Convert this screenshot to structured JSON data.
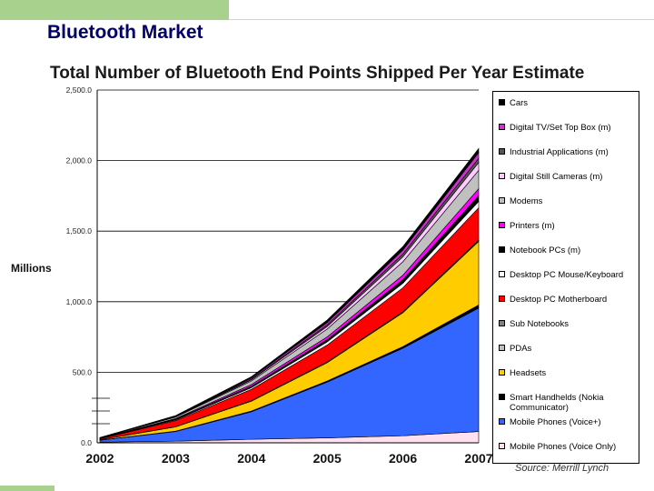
{
  "slide": {
    "title": "Bluetooth Market",
    "unit_label": "Millions",
    "source": "Source: Merrill Lynch"
  },
  "chart_data": {
    "type": "area",
    "stacked": true,
    "title": "Total Number of Bluetooth End Points Shipped Per Year Estimate",
    "ylabel": "Millions",
    "xlabel": "",
    "x": [
      "2002",
      "2003",
      "2004",
      "2005",
      "2006",
      "2007"
    ],
    "ylim": [
      0,
      2500
    ],
    "yticks": [
      "0.0",
      "500.0",
      "1,000.0",
      "1,500.0",
      "2,000.0",
      "2,500.0"
    ],
    "legend_position": "right",
    "series": [
      {
        "name": "Mobile Phones (Voice Only)",
        "color": "#ffe0f0",
        "values": [
          5,
          12,
          25,
          35,
          50,
          80
        ]
      },
      {
        "name": "Mobile Phones (Voice+)",
        "color": "#3366ff",
        "values": [
          13,
          68,
          195,
          395,
          620,
          875
        ]
      },
      {
        "name": "Smart Handhelds (Nokia Communicator)",
        "color": "#000000",
        "values": [
          0.5,
          3,
          5,
          8,
          12,
          22
        ]
      },
      {
        "name": "Headsets",
        "color": "#ffcc00",
        "values": [
          3,
          30,
          70,
          130,
          240,
          450
        ]
      },
      {
        "name": "PDAs",
        "color": "#c0c0c0",
        "values": [
          0.5,
          1,
          2,
          3,
          4,
          5
        ]
      },
      {
        "name": "Sub Notebooks",
        "color": "#808080",
        "values": [
          0.5,
          1,
          2,
          2,
          3,
          4
        ]
      },
      {
        "name": "Desktop PC Motherboard",
        "color": "#ff0000",
        "values": [
          6,
          42,
          80,
          120,
          170,
          230
        ]
      },
      {
        "name": "Desktop PC Mouse/Keyboard",
        "color": "#ffffff",
        "values": [
          2,
          5,
          12,
          22,
          32,
          45
        ]
      },
      {
        "name": "Notebook PCs (m)",
        "color": "#000000",
        "values": [
          1,
          5,
          10,
          16,
          25,
          40
        ]
      },
      {
        "name": "Printers (m)",
        "color": "#ff00ff",
        "values": [
          1,
          5,
          12,
          20,
          32,
          50
        ]
      },
      {
        "name": "Modems",
        "color": "#c0c0c0",
        "values": [
          2,
          10,
          25,
          55,
          95,
          130
        ]
      },
      {
        "name": "Digital Still Cameras (m)",
        "color": "#ffccff",
        "values": [
          1,
          3,
          8,
          18,
          35,
          55
        ]
      },
      {
        "name": "Industrial Applications (m)",
        "color": "#555555",
        "values": [
          0.5,
          1,
          5,
          12,
          20,
          30
        ]
      },
      {
        "name": "Digital TV/Set Top Box (m)",
        "color": "#cc33cc",
        "values": [
          0.5,
          2,
          8,
          16,
          28,
          40
        ]
      },
      {
        "name": "Cars",
        "color": "#000000",
        "values": [
          1,
          5,
          10,
          18,
          25,
          30
        ]
      }
    ],
    "legend_order": [
      "Cars",
      "Digital TV/Set Top Box (m)",
      "Industrial Applications (m)",
      "Digital Still Cameras (m)",
      "Modems",
      "Printers (m)",
      "Notebook PCs (m)",
      "Desktop PC Mouse/Keyboard",
      "Desktop PC Motherboard",
      "Sub Notebooks",
      "PDAs",
      "Headsets",
      "Smart Handhelds (Nokia Communicator)",
      "Mobile Phones (Voice+)",
      "Mobile Phones (Voice Only)"
    ]
  }
}
